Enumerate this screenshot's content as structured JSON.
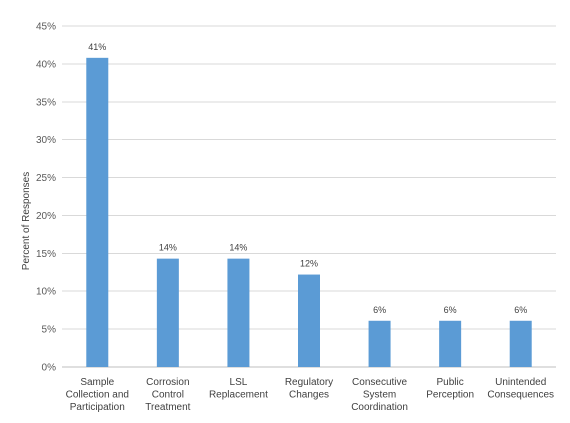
{
  "chart_data": {
    "type": "bar",
    "ylabel": "Percent of Responses",
    "xlabel": "",
    "ylim": [
      0,
      45
    ],
    "y_ticks": [
      0,
      5,
      10,
      15,
      20,
      25,
      30,
      35,
      40,
      45
    ],
    "y_tick_labels": [
      "0%",
      "5%",
      "10%",
      "15%",
      "20%",
      "25%",
      "30%",
      "35%",
      "40%",
      "45%"
    ],
    "grid": true,
    "bar_color": "#5b9bd5",
    "categories": [
      [
        "Sample",
        "Collection and",
        "Participation"
      ],
      [
        "Corrosion",
        "Control",
        "Treatment"
      ],
      [
        "LSL",
        "Replacement"
      ],
      [
        "Regulatory",
        "Changes"
      ],
      [
        "Consecutive",
        "System",
        "Coordination"
      ],
      [
        "Public",
        "Perception"
      ],
      [
        "Unintended",
        "Consequences"
      ]
    ],
    "values": [
      40.8,
      14.3,
      14.3,
      12.2,
      6.1,
      6.1,
      6.1
    ],
    "data_labels": [
      "41%",
      "14%",
      "14%",
      "12%",
      "6%",
      "6%",
      "6%"
    ]
  }
}
